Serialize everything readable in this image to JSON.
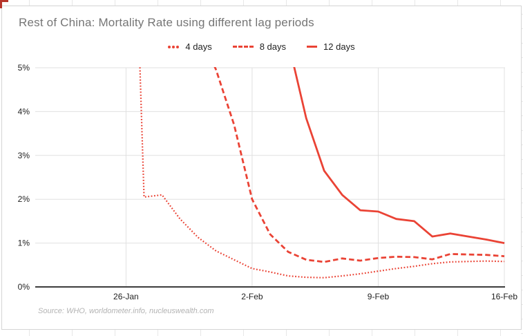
{
  "chart_data": {
    "type": "line",
    "title": "Rest of China: Mortality Rate using different lag periods",
    "source_text": "Source: WHO, worldometer.info, nucleuswealth.com",
    "xlabel": "",
    "ylabel": "",
    "ylim": [
      0,
      5
    ],
    "y_ticks": [
      "0%",
      "1%",
      "2%",
      "3%",
      "4%",
      "5%"
    ],
    "x": [
      "26-Jan",
      "27-Jan",
      "28-Jan",
      "29-Jan",
      "30-Jan",
      "31-Jan",
      "1-Feb",
      "2-Feb",
      "3-Feb",
      "4-Feb",
      "5-Feb",
      "6-Feb",
      "7-Feb",
      "8-Feb",
      "9-Feb",
      "10-Feb",
      "11-Feb",
      "12-Feb",
      "13-Feb",
      "14-Feb",
      "15-Feb",
      "16-Feb"
    ],
    "x_tick_indices": [
      0,
      7,
      14,
      21
    ],
    "x_tick_labels": [
      "26-Jan",
      "2-Feb",
      "9-Feb",
      "16-Feb"
    ],
    "x_pad_days_before": 5,
    "x_pad_days_after": 0,
    "grid": true,
    "legend_position": "top",
    "values_above_ymax_are_clipped": true,
    "series": [
      {
        "name": "4 days",
        "style": "dotted",
        "values": [
          15,
          2.05,
          2.1,
          1.55,
          1.13,
          0.82,
          0.62,
          0.42,
          0.34,
          0.25,
          0.22,
          0.21,
          0.25,
          0.3,
          0.36,
          0.42,
          0.47,
          0.53,
          0.57,
          0.58,
          0.59,
          0.58
        ]
      },
      {
        "name": "8 days",
        "style": "dashed",
        "values": [
          null,
          null,
          null,
          null,
          5.9,
          4.95,
          3.7,
          2.0,
          1.2,
          0.8,
          0.62,
          0.57,
          0.65,
          0.6,
          0.66,
          0.69,
          0.68,
          0.63,
          0.75,
          0.74,
          0.73,
          0.7
        ]
      },
      {
        "name": "12 days",
        "style": "solid",
        "values": [
          null,
          null,
          null,
          null,
          null,
          null,
          null,
          null,
          null,
          5.6,
          3.85,
          2.65,
          2.1,
          1.75,
          1.72,
          1.55,
          1.5,
          1.15,
          1.22,
          1.15,
          1.08,
          1.0
        ]
      }
    ],
    "colors": {
      "line": "#ea4335",
      "gridline": "#e0e0e0",
      "axis": "#3c3c3c",
      "axis_text": "#222222",
      "title_text": "#757575",
      "source_text": "#b3b3b3",
      "panel_border": "#d4d4d4",
      "corner_mark": "#b7352b"
    }
  },
  "icons": {
    "selection_corner": "red L-shaped cell-selection corner, top-left"
  }
}
